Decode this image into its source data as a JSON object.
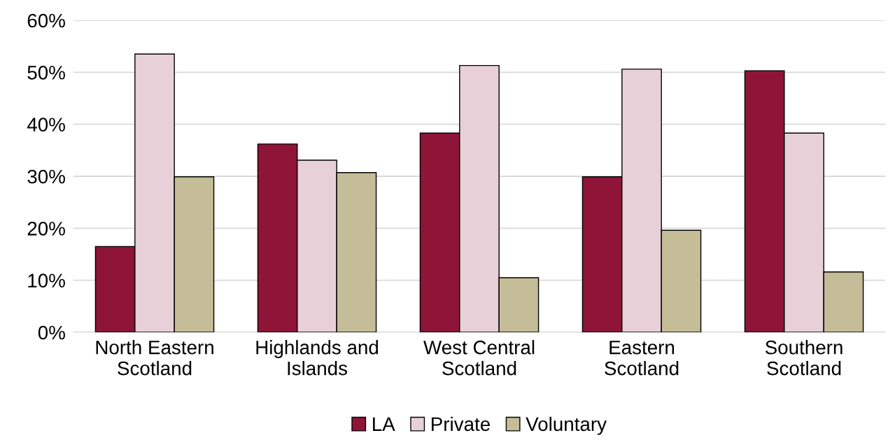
{
  "chart_data": {
    "type": "bar",
    "categories": [
      "North Eastern\nScotland",
      "Highlands and\nIslands",
      "West Central\nScotland",
      "Eastern\nScotland",
      "Southern\nScotland"
    ],
    "series": [
      {
        "name": "LA",
        "color": "#8e1538",
        "values": [
          16.5,
          36.2,
          38.3,
          29.9,
          50.3
        ]
      },
      {
        "name": "Private",
        "color": "#e8d0d9",
        "values": [
          53.5,
          33.1,
          51.3,
          50.6,
          38.3
        ]
      },
      {
        "name": "Voluntary",
        "color": "#c4bd97",
        "values": [
          29.9,
          30.7,
          10.5,
          19.6,
          11.6
        ]
      }
    ],
    "ylim": [
      0,
      60
    ],
    "yticks": [
      {
        "value": 0,
        "label": "0%"
      },
      {
        "value": 10,
        "label": "10%"
      },
      {
        "value": 20,
        "label": "20%"
      },
      {
        "value": 30,
        "label": "30%"
      },
      {
        "value": 40,
        "label": "40%"
      },
      {
        "value": 50,
        "label": "50%"
      },
      {
        "value": 60,
        "label": "60%"
      }
    ],
    "grid": "y",
    "legend": "bottom"
  }
}
